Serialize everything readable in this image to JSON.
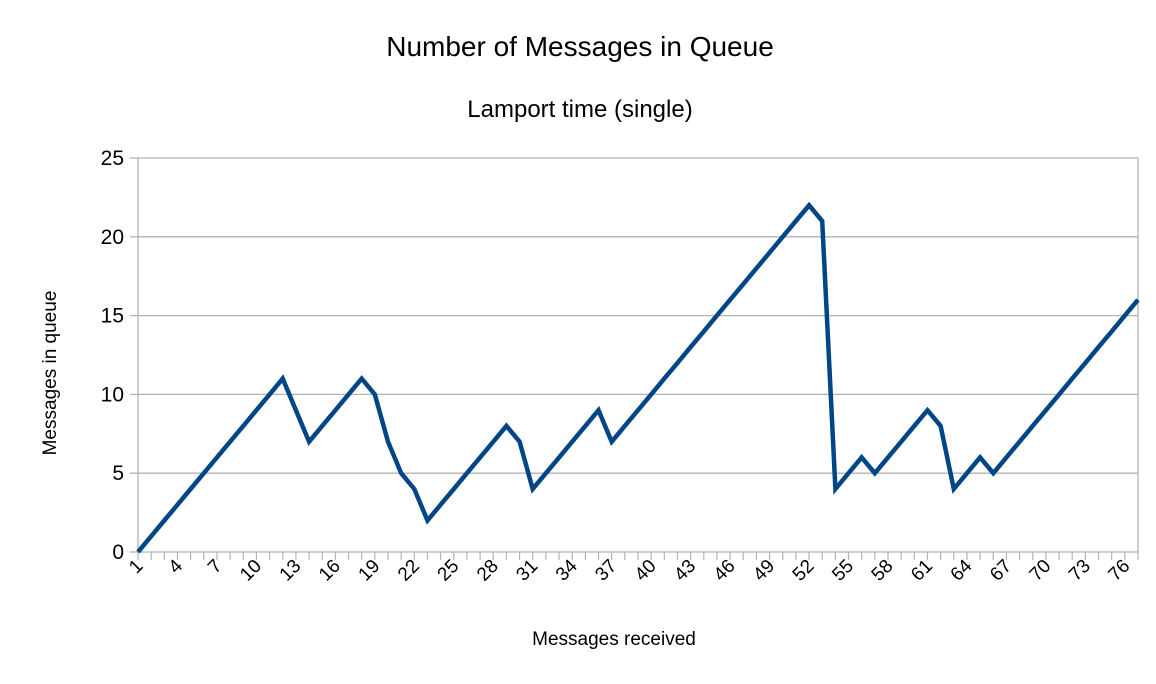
{
  "chart_data": {
    "type": "line",
    "title": "Number of Messages in Queue",
    "subtitle": "Lamport time (single)",
    "xlabel": "Messages received",
    "ylabel": "Messages in queue",
    "ylim": [
      0,
      25
    ],
    "yticks": [
      0,
      5,
      10,
      15,
      20,
      25
    ],
    "grid": true,
    "legend": "none",
    "colors": {
      "line": "#004586",
      "grid": "#b3b3b3",
      "axis": "#b3b3b3"
    },
    "x": [
      1,
      2,
      3,
      4,
      5,
      6,
      7,
      8,
      9,
      10,
      11,
      12,
      13,
      14,
      15,
      16,
      17,
      18,
      19,
      20,
      21,
      22,
      23,
      24,
      25,
      26,
      27,
      28,
      29,
      30,
      31,
      32,
      33,
      34,
      35,
      36,
      37,
      38,
      39,
      40,
      41,
      42,
      43,
      44,
      45,
      46,
      47,
      48,
      49,
      50,
      51,
      52,
      53,
      54,
      55,
      56,
      57,
      58,
      59,
      60,
      61,
      62,
      63,
      64,
      65,
      66,
      67,
      68,
      69,
      70,
      71,
      72,
      73,
      74,
      75,
      76,
      77
    ],
    "x_tick_labels": [
      "1",
      "4",
      "7",
      "10",
      "13",
      "16",
      "19",
      "22",
      "25",
      "28",
      "31",
      "34",
      "37",
      "40",
      "43",
      "46",
      "49",
      "52",
      "55",
      "58",
      "61",
      "64",
      "67",
      "70",
      "73",
      "76"
    ],
    "series": [
      {
        "values": [
          0,
          1,
          2,
          3,
          4,
          5,
          6,
          7,
          8,
          9,
          10,
          11,
          9,
          7,
          8,
          9,
          10,
          11,
          10,
          7,
          5,
          4,
          2,
          3,
          4,
          5,
          6,
          7,
          8,
          7,
          4,
          5,
          6,
          7,
          8,
          9,
          7,
          8,
          9,
          10,
          11,
          12,
          13,
          14,
          15,
          16,
          17,
          18,
          19,
          20,
          21,
          22,
          21,
          4,
          5,
          6,
          5,
          6,
          7,
          8,
          9,
          8,
          4,
          5,
          6,
          5,
          6,
          7,
          8,
          9,
          10,
          11,
          12,
          13,
          14,
          15,
          16
        ]
      }
    ]
  }
}
